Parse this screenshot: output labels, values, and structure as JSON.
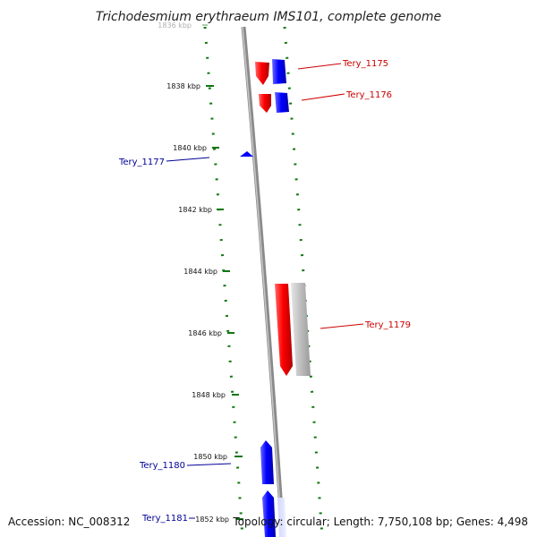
{
  "title": "Trichodesmium erythraeum IMS101, complete genome",
  "footer": {
    "accession": "Accession: NC_008312",
    "summary": "Topology: circular; Length: 7,750,108 bp; Genes: 4,498"
  },
  "ticks": [
    {
      "label": "1836 kbp",
      "faded": true
    },
    {
      "label": "1838 kbp"
    },
    {
      "label": "1840 kbp"
    },
    {
      "label": "1842 kbp"
    },
    {
      "label": "1844 kbp"
    },
    {
      "label": "1846 kbp"
    },
    {
      "label": "1848 kbp"
    },
    {
      "label": "1850 kbp"
    },
    {
      "label": "1852 kbp"
    }
  ],
  "genes": [
    {
      "name": "Tery_1175",
      "strand": "plus",
      "color": "#cc0000"
    },
    {
      "name": "Tery_1176",
      "strand": "plus",
      "color": "#cc0000"
    },
    {
      "name": "Tery_1177",
      "strand": "minus",
      "color": "#000099"
    },
    {
      "name": "Tery_1179",
      "strand": "plus",
      "color": "#cc0000"
    },
    {
      "name": "Tery_1180",
      "strand": "minus",
      "color": "#000099"
    },
    {
      "name": "Tery_1181",
      "strand": "minus",
      "color": "#000099"
    }
  ],
  "colors": {
    "cds_plus": "#ff0000",
    "cds_minus": "#0000ff",
    "gene_shadow": "#b8b8b8",
    "backbone": "#888888",
    "ticks": "#117711"
  }
}
